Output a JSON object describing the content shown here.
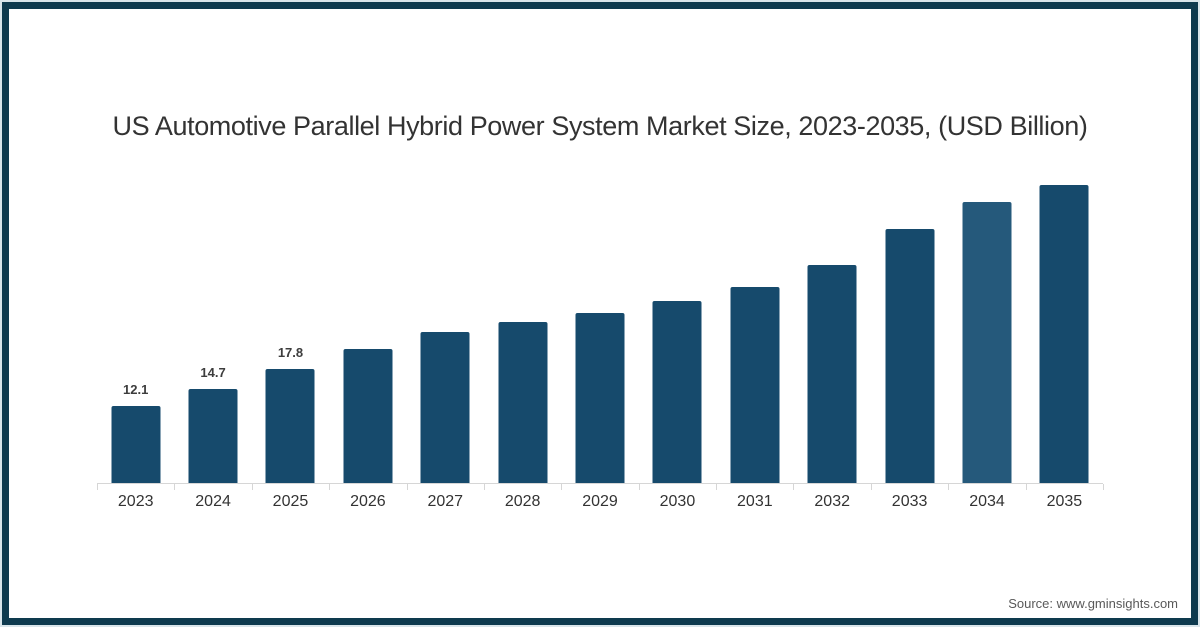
{
  "page": {
    "source": "Source: www.gminsights.com"
  },
  "colors": {
    "frame": "#0e3a4e",
    "frame_outer_line": "#d9e5ea",
    "bar": "#164a6c",
    "highlight_bar": "#25597b",
    "axis": "#d6d6d6",
    "title_text": "#333333",
    "value_label_text": "#3d3d3d",
    "source_text": "#595959"
  },
  "chart_data": {
    "type": "bar",
    "title": "US Automotive Parallel Hybrid Power System Market Size, 2023-2035, (USD Billion)",
    "xlabel": "",
    "ylabel": "",
    "unit": "USD Billion",
    "categories": [
      "2023",
      "2024",
      "2025",
      "2026",
      "2027",
      "2028",
      "2029",
      "2030",
      "2031",
      "2032",
      "2033",
      "2034",
      "2035"
    ],
    "values": [
      12.1,
      14.7,
      17.8,
      21.0,
      23.6,
      25.2,
      26.6,
      28.4,
      30.7,
      34.0,
      39.7,
      43.9,
      46.6
    ],
    "value_labels": [
      "12.1",
      "14.7",
      "17.8",
      null,
      null,
      null,
      null,
      null,
      null,
      null,
      null,
      null,
      null
    ],
    "highlight_category": "2034",
    "ylim": [
      0,
      48
    ],
    "grid": false,
    "legend": false,
    "colors": {
      "bar": "#164a6c",
      "highlight": "#25597b"
    }
  }
}
